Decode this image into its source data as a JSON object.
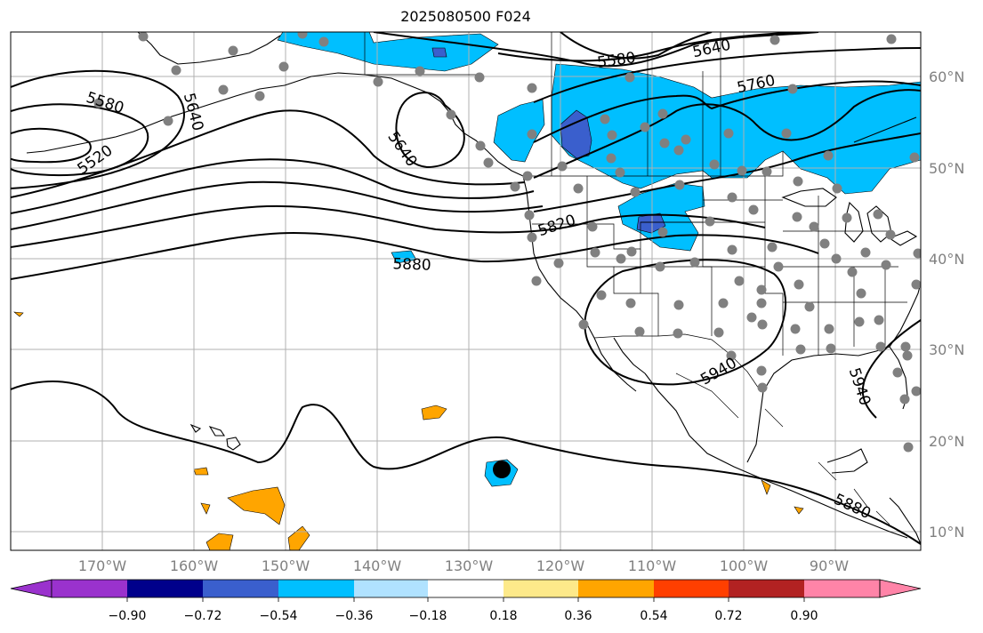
{
  "title": "2025080500 F024",
  "longitude_labels": [
    "170°W",
    "160°W",
    "150°W",
    "140°W",
    "130°W",
    "120°W",
    "110°W",
    "100°W",
    "90°W"
  ],
  "latitude_labels": [
    "60°N",
    "50°N",
    "40°N",
    "30°N",
    "20°N",
    "10°N"
  ],
  "contour_labels": [
    {
      "text": "5580",
      "rot": 18
    },
    {
      "text": "5640",
      "rot": 75
    },
    {
      "text": "5520",
      "rot": -35
    },
    {
      "text": "5640",
      "rot": 55
    },
    {
      "text": "5580",
      "rot": -8
    },
    {
      "text": "5640",
      "rot": -12
    },
    {
      "text": "5760",
      "rot": -12
    },
    {
      "text": "5820",
      "rot": -18
    },
    {
      "text": "5880",
      "rot": 2
    },
    {
      "text": "5940",
      "rot": -30
    },
    {
      "text": "5940",
      "rot": 72
    },
    {
      "text": "5880",
      "rot": 25
    }
  ],
  "colorbar": {
    "labels": [
      "−0.90",
      "−0.72",
      "−0.54",
      "−0.36",
      "−0.18",
      "0.18",
      "0.36",
      "0.54",
      "0.72",
      "0.90"
    ],
    "colors": [
      "#9a32cd",
      "#00008b",
      "#3a5fcd",
      "#00bfff",
      "#b0e2ff",
      "#ffffff",
      "#fde98a",
      "#ffa500",
      "#ff3f00",
      "#b22222",
      "#ff84a8"
    ]
  },
  "colors": {
    "neg_light": "#00bfff",
    "neg_mid": "#3a5fcd",
    "pos_light": "#ffa500",
    "grid": "#b0b0b0",
    "station": "#808080"
  }
}
